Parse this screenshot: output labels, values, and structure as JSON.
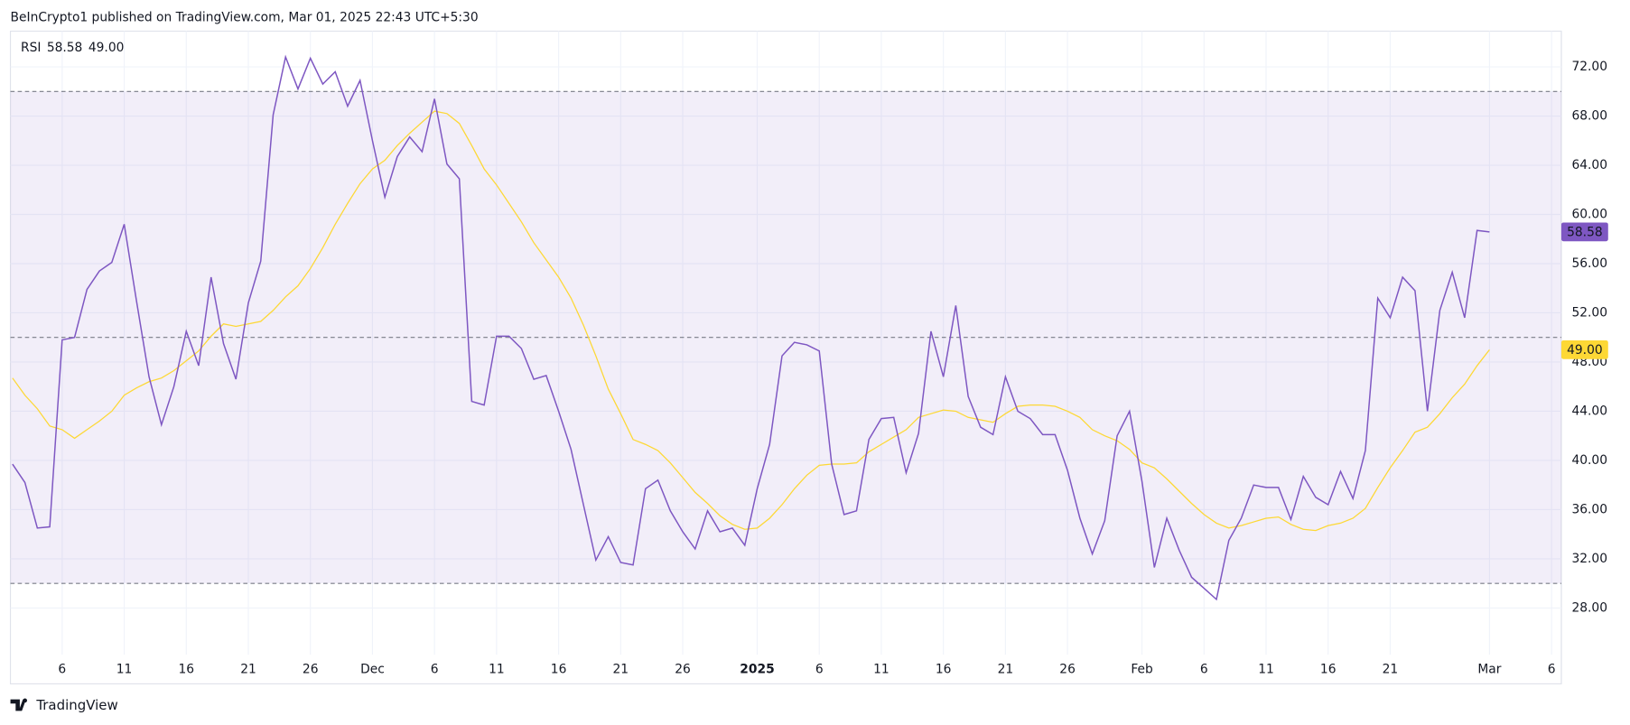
{
  "header": "BeInCrypto1 published on TradingView.com, Mar 01, 2025 22:43 UTC+5:30",
  "footer": "TradingView",
  "chart_data": {
    "type": "line",
    "categories": [
      null,
      null,
      null,
      null,
      "6",
      null,
      null,
      null,
      null,
      "11",
      null,
      null,
      null,
      null,
      "16",
      null,
      null,
      null,
      null,
      "21",
      null,
      null,
      null,
      null,
      "26",
      null,
      null,
      null,
      null,
      "Dec",
      null,
      null,
      null,
      null,
      "6",
      null,
      null,
      null,
      null,
      "11",
      null,
      null,
      null,
      null,
      "16",
      null,
      null,
      null,
      null,
      "21",
      null,
      null,
      null,
      null,
      "26",
      null,
      null,
      null,
      null,
      null,
      "2025",
      null,
      null,
      null,
      null,
      "6",
      null,
      null,
      null,
      null,
      "11",
      null,
      null,
      null,
      null,
      "16",
      null,
      null,
      null,
      null,
      "21",
      null,
      null,
      null,
      null,
      "26",
      null,
      null,
      null,
      null,
      null,
      "Feb",
      null,
      null,
      null,
      null,
      "6",
      null,
      null,
      null,
      null,
      "11",
      null,
      null,
      null,
      null,
      "16",
      null,
      null,
      null,
      null,
      "21",
      null,
      null,
      null,
      null,
      null,
      null,
      null,
      "Mar",
      null,
      null,
      null,
      null,
      "6"
    ],
    "series": [
      {
        "name": "RSI",
        "color": "#7e57c2",
        "last_value_label": "58.58",
        "values": [
          39.7,
          38.2,
          34.5,
          34.6,
          49.8,
          50.0,
          53.9,
          55.4,
          56.1,
          59.2,
          52.9,
          46.8,
          42.9,
          46.0,
          50.5,
          47.7,
          54.9,
          49.5,
          46.6,
          52.8,
          56.2,
          68.1,
          72.8,
          70.2,
          72.7,
          70.6,
          71.6,
          68.8,
          70.9,
          66.0,
          61.4,
          64.7,
          66.3,
          65.1,
          69.4,
          64.1,
          62.9,
          44.8,
          44.5,
          50.1,
          50.1,
          49.1,
          46.6,
          46.9,
          44.0,
          40.9,
          36.4,
          31.9,
          33.8,
          31.7,
          31.5,
          37.7,
          38.4,
          35.9,
          34.2,
          32.8,
          35.9,
          34.2,
          34.5,
          33.1,
          37.7,
          41.3,
          48.5,
          49.6,
          49.4,
          48.9,
          39.7,
          35.6,
          35.9,
          41.7,
          43.4,
          43.5,
          39.0,
          42.2,
          50.5,
          46.8,
          52.6,
          45.2,
          42.7,
          42.1,
          46.8,
          44.0,
          43.4,
          42.1,
          42.1,
          39.2,
          35.3,
          32.4,
          35.1,
          42.0,
          44.0,
          38.3,
          31.3,
          35.3,
          32.7,
          30.5,
          29.6,
          28.7,
          33.5,
          35.3,
          38.0,
          37.8,
          37.8,
          35.2,
          38.7,
          37.0,
          36.4,
          39.1,
          36.9,
          40.8,
          53.2,
          51.6,
          54.9,
          53.8,
          44.0,
          52.2,
          55.3,
          51.6,
          58.7,
          58.58,
          null,
          null,
          null,
          null,
          null
        ]
      },
      {
        "color": "#fdd835",
        "last_value_label": "49.00",
        "values": [
          46.7,
          45.3,
          44.2,
          42.8,
          42.5,
          41.8,
          42.5,
          43.2,
          44.0,
          45.3,
          45.9,
          46.4,
          46.7,
          47.3,
          48.1,
          48.9,
          50.1,
          51.1,
          50.9,
          51.1,
          51.3,
          52.2,
          53.3,
          54.2,
          55.6,
          57.3,
          59.2,
          60.9,
          62.5,
          63.7,
          64.4,
          65.6,
          66.6,
          67.5,
          68.4,
          68.2,
          67.4,
          65.6,
          63.7,
          62.4,
          60.9,
          59.4,
          57.7,
          56.3,
          54.9,
          53.2,
          51.0,
          48.5,
          45.8,
          43.8,
          41.7,
          41.3,
          40.8,
          39.8,
          38.6,
          37.4,
          36.5,
          35.5,
          34.8,
          34.4,
          34.5,
          35.3,
          36.4,
          37.7,
          38.8,
          39.6,
          39.7,
          39.7,
          39.8,
          40.7,
          41.3,
          41.9,
          42.5,
          43.5,
          43.8,
          44.1,
          44.0,
          43.5,
          43.3,
          43.1,
          43.8,
          44.4,
          44.5,
          44.5,
          44.4,
          44.0,
          43.5,
          42.5,
          42.0,
          41.6,
          40.9,
          39.8,
          39.4,
          38.5,
          37.5,
          36.5,
          35.6,
          34.9,
          34.5,
          34.7,
          35.0,
          35.3,
          35.4,
          34.8,
          34.4,
          34.3,
          34.7,
          34.9,
          35.3,
          36.1,
          37.8,
          39.4,
          40.8,
          42.3,
          42.7,
          43.8,
          45.1,
          46.2,
          47.7,
          49.0,
          null,
          null,
          null,
          null,
          null
        ]
      }
    ],
    "ylim": [
      24.2,
      74.9
    ],
    "yticks": [
      {
        "value": 28,
        "label": "28.00"
      },
      {
        "value": 32,
        "label": "32.00"
      },
      {
        "value": 36,
        "label": "36.00"
      },
      {
        "value": 40,
        "label": "40.00"
      },
      {
        "value": 44,
        "label": "44.00"
      },
      {
        "value": 48,
        "label": "48.00"
      },
      {
        "value": 52,
        "label": "52.00"
      },
      {
        "value": 56,
        "label": "56.00"
      },
      {
        "value": 60,
        "label": "60.00"
      },
      {
        "value": 64,
        "label": "64.00"
      },
      {
        "value": 68,
        "label": "68.00"
      },
      {
        "value": 72,
        "label": "72.00"
      }
    ],
    "bands": [
      30,
      50,
      70
    ],
    "band_color": "#7e57c2",
    "grid": true
  }
}
